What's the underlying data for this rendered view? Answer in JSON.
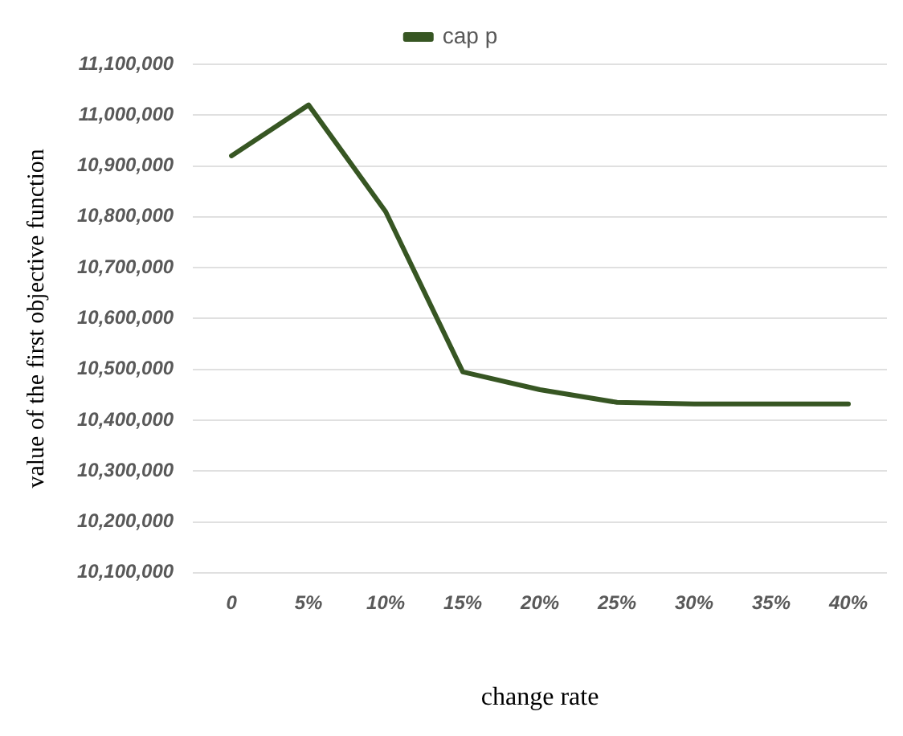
{
  "chart_data": {
    "type": "line",
    "xlabel": "change rate",
    "ylabel": "value of the first objective function",
    "categories": [
      "0",
      "5%",
      "10%",
      "15%",
      "20%",
      "25%",
      "30%",
      "35%",
      "40%"
    ],
    "series": [
      {
        "name": "cap p",
        "color": "#375623",
        "values": [
          10920000,
          11020000,
          10810000,
          10495000,
          10460000,
          10435000,
          10432000,
          10432000,
          10432000
        ]
      }
    ],
    "ylim": [
      10100000,
      11100000
    ],
    "yticks": [
      {
        "value": 10100000,
        "label": "10,100,000"
      },
      {
        "value": 10200000,
        "label": "10,200,000"
      },
      {
        "value": 10300000,
        "label": "10,300,000"
      },
      {
        "value": 10400000,
        "label": "10,400,000"
      },
      {
        "value": 10500000,
        "label": "10,500,000"
      },
      {
        "value": 10600000,
        "label": "10,600,000"
      },
      {
        "value": 10700000,
        "label": "10,700,000"
      },
      {
        "value": 10800000,
        "label": "10,800,000"
      },
      {
        "value": 10900000,
        "label": "10,900,000"
      },
      {
        "value": 11000000,
        "label": "11,000,000"
      },
      {
        "value": 11100000,
        "label": "11,100,000"
      }
    ],
    "grid": "y",
    "legend": "top",
    "marker": "none",
    "line_style": "solid"
  }
}
